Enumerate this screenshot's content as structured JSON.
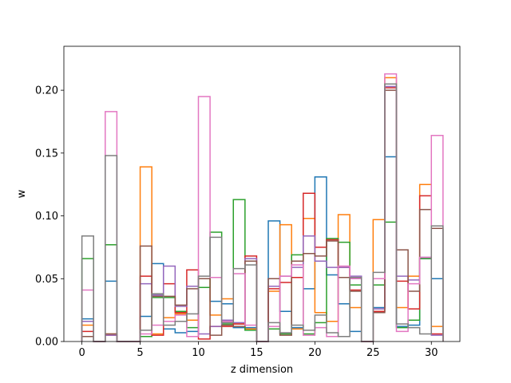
{
  "chart_data": {
    "type": "step-histogram",
    "xlabel": "z dimension",
    "ylabel": "w",
    "xlim": [
      -1.55,
      32.45
    ],
    "ylim": [
      0,
      0.235
    ],
    "x_ticks": [
      0,
      5,
      10,
      15,
      20,
      25,
      30
    ],
    "y_ticks": [
      0.0,
      0.05,
      0.1,
      0.15,
      0.2
    ],
    "y_tick_labels": [
      "0.00",
      "0.05",
      "0.10",
      "0.15",
      "0.20"
    ],
    "bin_edges": [
      0,
      1,
      2,
      3,
      4,
      5,
      6,
      7,
      8,
      9,
      10,
      11,
      12,
      13,
      14,
      15,
      16,
      17,
      18,
      19,
      20,
      21,
      22,
      23,
      24,
      25,
      26,
      27,
      28,
      29,
      30,
      31
    ],
    "series": [
      {
        "color": "#1f77b4",
        "values": [
          0.018,
          0,
          0.048,
          0,
          0,
          0.02,
          0.062,
          0.01,
          0.007,
          0.008,
          0.043,
          0.032,
          0.03,
          0.011,
          0.011,
          0,
          0.096,
          0.024,
          0.011,
          0.042,
          0.131,
          0.053,
          0.03,
          0.008,
          0,
          0.027,
          0.147,
          0.012,
          0.013,
          0.066,
          0.05
        ]
      },
      {
        "color": "#ff7f0e",
        "values": [
          0.013,
          0,
          0.006,
          0,
          0,
          0.139,
          0.006,
          0.019,
          0.022,
          0.017,
          0.05,
          0.021,
          0.034,
          0.014,
          0.01,
          0,
          0.04,
          0.093,
          0.01,
          0.098,
          0.023,
          0.016,
          0.101,
          0.027,
          0,
          0.097,
          0.21,
          0.027,
          0.052,
          0.125,
          0.012
        ]
      },
      {
        "color": "#2ca02c",
        "values": [
          0.066,
          0,
          0.077,
          0,
          0,
          0.004,
          0.035,
          0.035,
          0.024,
          0.011,
          0.043,
          0.087,
          0.014,
          0.113,
          0.009,
          0,
          0.01,
          0.006,
          0.069,
          0.006,
          0.015,
          0.082,
          0.079,
          0.045,
          0,
          0.045,
          0.095,
          0.011,
          0.017,
          0.066,
          0.09
        ]
      },
      {
        "color": "#d62728",
        "values": [
          0.008,
          0,
          0.005,
          0,
          0,
          0.052,
          0.005,
          0.046,
          0.023,
          0.057,
          0.002,
          0.012,
          0.012,
          0.014,
          0.068,
          0,
          0.042,
          0.047,
          0.051,
          0.118,
          0.075,
          0.081,
          0.059,
          0.041,
          0,
          0.024,
          0.202,
          0.048,
          0.026,
          0.116,
          0.006
        ]
      },
      {
        "color": "#9467bd",
        "values": [
          0.016,
          0,
          0.005,
          0,
          0,
          0.046,
          0.037,
          0.06,
          0.028,
          0.044,
          0.006,
          0.012,
          0.017,
          0.015,
          0.066,
          0,
          0.044,
          0.052,
          0.059,
          0.084,
          0.064,
          0.059,
          0.059,
          0.052,
          0,
          0.026,
          0.203,
          0.052,
          0.049,
          0.067,
          0.005
        ]
      },
      {
        "color": "#8c564b",
        "values": [
          0.004,
          0,
          0.006,
          0,
          0,
          0.076,
          0.036,
          0.036,
          0.029,
          0.042,
          0.05,
          0.005,
          0.013,
          0.012,
          0.064,
          0,
          0.05,
          0.005,
          0.064,
          0.07,
          0.068,
          0.08,
          0.051,
          0.04,
          0,
          0.023,
          0.2,
          0.073,
          0.04,
          0.105,
          0.09
        ]
      },
      {
        "color": "#e377c2",
        "values": [
          0.041,
          0,
          0.183,
          0,
          0,
          0.006,
          0.013,
          0.016,
          0.021,
          0.004,
          0.195,
          0.051,
          0.016,
          0.054,
          0.013,
          0,
          0.012,
          0.052,
          0.061,
          0.005,
          0.011,
          0.004,
          0.06,
          0.05,
          0,
          0.05,
          0.213,
          0.008,
          0.046,
          0.067,
          0.164
        ]
      },
      {
        "color": "#7f7f7f",
        "values": [
          0.084,
          0,
          0.148,
          0,
          0,
          0.009,
          0.038,
          0.013,
          0.016,
          0.022,
          0.052,
          0.083,
          0.015,
          0.058,
          0.061,
          0,
          0.015,
          0.007,
          0.013,
          0.009,
          0.021,
          0.007,
          0.004,
          0.051,
          0,
          0.055,
          0.205,
          0.014,
          0.011,
          0.006,
          0.092
        ]
      }
    ]
  }
}
